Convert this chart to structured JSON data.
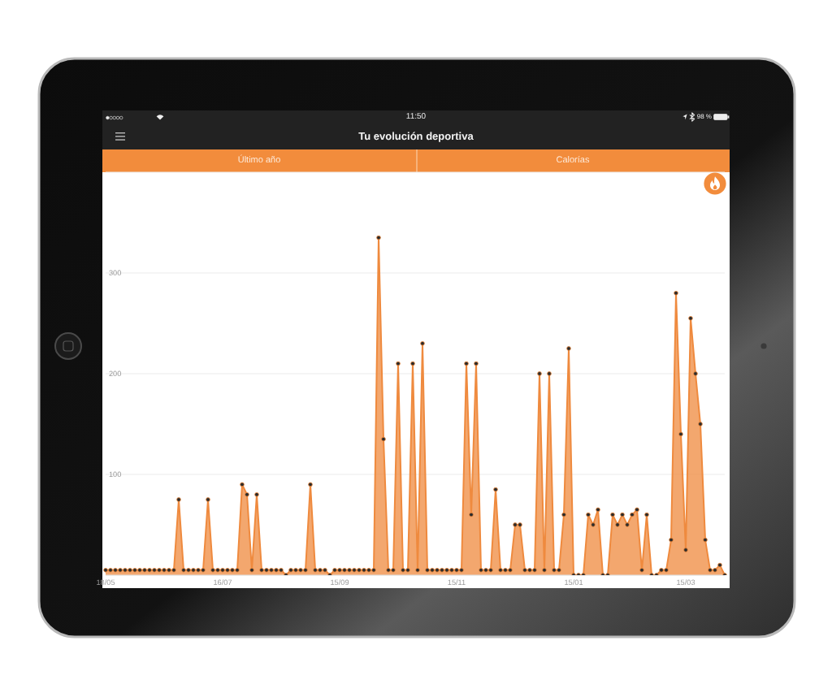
{
  "chart_data": {
    "type": "area",
    "title": "Tu evolución deportiva",
    "annotations": [
      "11:50",
      "98 %",
      "Último año",
      "Calorías"
    ],
    "categories": [
      "18/05",
      null,
      null,
      null,
      null,
      null,
      null,
      null,
      null,
      null,
      null,
      null,
      null,
      null,
      null,
      null,
      null,
      null,
      null,
      null,
      null,
      null,
      null,
      null,
      "16/07",
      null,
      null,
      null,
      null,
      null,
      null,
      null,
      null,
      null,
      null,
      null,
      null,
      null,
      null,
      null,
      null,
      null,
      null,
      null,
      null,
      null,
      null,
      null,
      "15/09",
      null,
      null,
      null,
      null,
      null,
      null,
      null,
      null,
      null,
      null,
      null,
      null,
      null,
      null,
      null,
      null,
      null,
      null,
      null,
      null,
      null,
      null,
      null,
      "15/11",
      null,
      null,
      null,
      null,
      null,
      null,
      null,
      null,
      null,
      null,
      null,
      null,
      null,
      null,
      null,
      null,
      null,
      null,
      null,
      null,
      null,
      null,
      null,
      "15/01",
      null,
      null,
      null,
      null,
      null,
      null,
      null,
      null,
      null,
      null,
      null,
      null,
      null,
      null,
      null,
      null,
      null,
      null,
      null,
      null,
      null,
      null,
      "15/03",
      null,
      null,
      null,
      null,
      null,
      null,
      null,
      null
    ],
    "values": [
      5,
      5,
      5,
      5,
      5,
      5,
      5,
      5,
      5,
      5,
      5,
      5,
      5,
      5,
      5,
      75,
      5,
      5,
      5,
      5,
      5,
      75,
      5,
      5,
      5,
      5,
      5,
      5,
      90,
      80,
      5,
      80,
      5,
      5,
      5,
      5,
      5,
      0,
      5,
      5,
      5,
      5,
      90,
      5,
      5,
      5,
      0,
      5,
      5,
      5,
      5,
      5,
      5,
      5,
      5,
      5,
      335,
      135,
      5,
      5,
      210,
      5,
      5,
      210,
      5,
      230,
      5,
      5,
      5,
      5,
      5,
      5,
      5,
      5,
      210,
      60,
      210,
      5,
      5,
      5,
      85,
      5,
      5,
      5,
      50,
      50,
      5,
      5,
      5,
      200,
      5,
      200,
      5,
      5,
      60,
      225,
      0,
      0,
      0,
      60,
      50,
      65,
      0,
      0,
      60,
      50,
      60,
      50,
      60,
      65,
      5,
      60,
      0,
      0,
      5,
      5,
      35,
      280,
      140,
      25,
      255,
      200,
      150,
      35,
      5,
      5,
      10,
      0
    ],
    "color": "#ef8a3e",
    "ylim": [
      0,
      400
    ],
    "yticks": [
      100,
      200,
      300
    ],
    "grid": "y",
    "marker": "circle"
  }
}
